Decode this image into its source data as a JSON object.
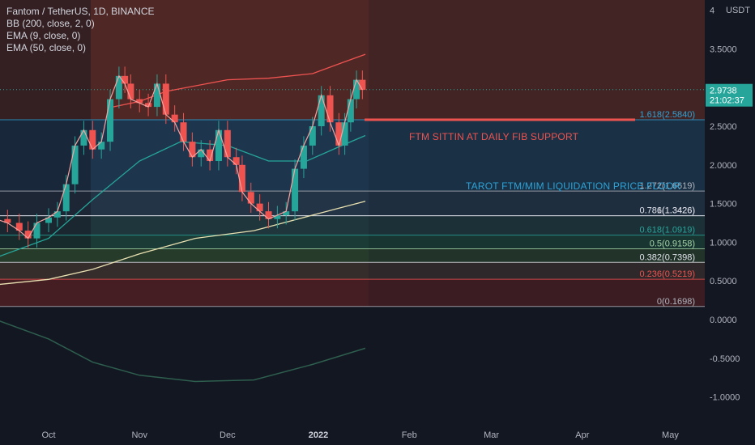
{
  "legend": {
    "title": "Fantom / TetherUS, 1D, BINANCE",
    "ind1": "BB (200, close, 2, 0)",
    "ind2": "EMA (9, close, 0)",
    "ind3": "EMA (50, close, 0)"
  },
  "annotations": {
    "fib_support": "FTM SITTIN AT DAILY FIB SUPPORT",
    "liquidation": "TAROT FTM/MIM LIQUIDATION PRICE FLOOR"
  },
  "price_badge": {
    "price": "2.9738",
    "countdown": "21:02:37",
    "color": "#26a69a"
  },
  "chart_data": {
    "type": "candlestick",
    "symbol": "FTMUSDT",
    "timeframe": "1D",
    "y_unit": "USDT",
    "y_ticks": [
      "4",
      "3.5000",
      "3.0000",
      "2.5000",
      "2.0000",
      "1.5000",
      "1.0000",
      "0.5000",
      "0.0000",
      "-0.5000",
      "-1.0000"
    ],
    "y_tick_values": [
      4,
      3.5,
      3.0,
      2.5,
      2.0,
      1.5,
      1.0,
      0.5,
      0.0,
      -0.5,
      -1.0
    ],
    "x_ticks": [
      "Oct",
      "Nov",
      "Dec",
      "2022",
      "Feb",
      "Mar",
      "Apr",
      "May"
    ],
    "x_tick_days": [
      0,
      31,
      61,
      92,
      123,
      151,
      182,
      212
    ],
    "last_price": 2.9738,
    "fib_levels": [
      {
        "label": "1.618(2.5840)",
        "value": 2.584,
        "color": "#2ea3d6"
      },
      {
        "label": "1.272(1.6619)",
        "value": 1.6619,
        "color": "#b2b5be"
      },
      {
        "label": "1(1.3426)",
        "value": 1.3426,
        "color": "#b2b5be"
      },
      {
        "label": "0.786(1.3426)",
        "value": 1.3426,
        "color": "#e0e3eb"
      },
      {
        "label": "0.618(1.0919)",
        "value": 1.0919,
        "color": "#26a69a"
      },
      {
        "label": "0.5(0.9158)",
        "value": 0.9158,
        "color": "#a5d6a7"
      },
      {
        "label": "0.382(0.7398)",
        "value": 0.7398,
        "color": "#e0e3eb"
      },
      {
        "label": "0.236(0.5219)",
        "value": 0.5219,
        "color": "#ef5350"
      },
      {
        "label": "0(0.1698)",
        "value": 0.1698,
        "color": "#b2b5be"
      }
    ],
    "close_series": [
      {
        "day": -18,
        "close": 1.3
      },
      {
        "day": -14,
        "close": 1.25
      },
      {
        "day": -10,
        "close": 1.15
      },
      {
        "day": -7,
        "close": 1.05
      },
      {
        "day": -4,
        "close": 1.25
      },
      {
        "day": 0,
        "close": 1.32
      },
      {
        "day": 3,
        "close": 1.4
      },
      {
        "day": 6,
        "close": 1.75
      },
      {
        "day": 9,
        "close": 2.25
      },
      {
        "day": 12,
        "close": 2.45
      },
      {
        "day": 15,
        "close": 2.2
      },
      {
        "day": 18,
        "close": 2.3
      },
      {
        "day": 21,
        "close": 2.85
      },
      {
        "day": 24,
        "close": 3.15
      },
      {
        "day": 26,
        "close": 3.05
      },
      {
        "day": 28,
        "close": 2.85
      },
      {
        "day": 31,
        "close": 2.8
      },
      {
        "day": 34,
        "close": 2.75
      },
      {
        "day": 37,
        "close": 3.05
      },
      {
        "day": 40,
        "close": 2.65
      },
      {
        "day": 43,
        "close": 2.55
      },
      {
        "day": 46,
        "close": 2.3
      },
      {
        "day": 49,
        "close": 2.1
      },
      {
        "day": 52,
        "close": 2.2
      },
      {
        "day": 55,
        "close": 2.05
      },
      {
        "day": 58,
        "close": 2.45
      },
      {
        "day": 61,
        "close": 2.1
      },
      {
        "day": 64,
        "close": 2.0
      },
      {
        "day": 66,
        "close": 1.65
      },
      {
        "day": 69,
        "close": 1.5
      },
      {
        "day": 72,
        "close": 1.4
      },
      {
        "day": 75,
        "close": 1.3
      },
      {
        "day": 78,
        "close": 1.35
      },
      {
        "day": 81,
        "close": 1.4
      },
      {
        "day": 84,
        "close": 1.95
      },
      {
        "day": 87,
        "close": 2.25
      },
      {
        "day": 90,
        "close": 2.5
      },
      {
        "day": 93,
        "close": 2.9
      },
      {
        "day": 96,
        "close": 2.55
      },
      {
        "day": 99,
        "close": 2.25
      },
      {
        "day": 101,
        "close": 2.55
      },
      {
        "day": 103,
        "close": 2.85
      },
      {
        "day": 105,
        "close": 3.1
      },
      {
        "day": 107,
        "close": 2.97
      }
    ],
    "bb_upper": [
      {
        "day": 22,
        "v": 2.75
      },
      {
        "day": 31,
        "v": 2.82
      },
      {
        "day": 40,
        "v": 2.95
      },
      {
        "day": 61,
        "v": 3.1
      },
      {
        "day": 75,
        "v": 3.12
      },
      {
        "day": 90,
        "v": 3.18
      },
      {
        "day": 100,
        "v": 3.32
      },
      {
        "day": 108,
        "v": 3.43
      }
    ],
    "ema50": [
      {
        "day": -18,
        "v": 0.8
      },
      {
        "day": 0,
        "v": 1.05
      },
      {
        "day": 15,
        "v": 1.55
      },
      {
        "day": 31,
        "v": 2.05
      },
      {
        "day": 45,
        "v": 2.3
      },
      {
        "day": 61,
        "v": 2.25
      },
      {
        "day": 75,
        "v": 2.05
      },
      {
        "day": 88,
        "v": 2.05
      },
      {
        "day": 100,
        "v": 2.25
      },
      {
        "day": 108,
        "v": 2.38
      }
    ],
    "bb_basis": [
      {
        "day": -18,
        "v": 0.45
      },
      {
        "day": 0,
        "v": 0.52
      },
      {
        "day": 15,
        "v": 0.65
      },
      {
        "day": 31,
        "v": 0.85
      },
      {
        "day": 50,
        "v": 1.05
      },
      {
        "day": 70,
        "v": 1.15
      },
      {
        "day": 90,
        "v": 1.35
      },
      {
        "day": 108,
        "v": 1.53
      }
    ],
    "bb_lower": [
      {
        "day": -18,
        "v": 0.0
      },
      {
        "day": 0,
        "v": -0.25
      },
      {
        "day": 15,
        "v": -0.55
      },
      {
        "day": 31,
        "v": -0.72
      },
      {
        "day": 50,
        "v": -0.8
      },
      {
        "day": 70,
        "v": -0.78
      },
      {
        "day": 90,
        "v": -0.58
      },
      {
        "day": 108,
        "v": -0.37
      }
    ],
    "colors": {
      "up": "#26a69a",
      "down": "#ef5350",
      "ema9": "#f6a3a0",
      "ema50": "#26a69a",
      "bb_basis": "#e8e0b0",
      "bb_upper": "#ef5350",
      "bb_lower": "#2e5e4e"
    }
  }
}
